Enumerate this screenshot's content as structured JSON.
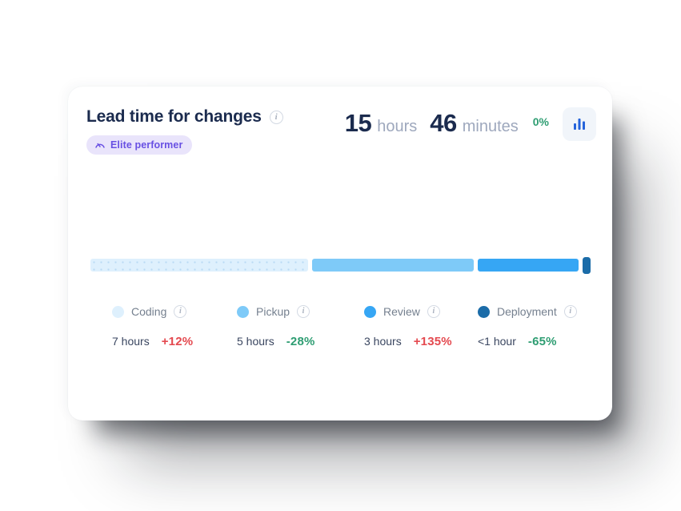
{
  "card": {
    "title": "Lead time for changes",
    "badge_label": "Elite performer",
    "summary": {
      "hours_value": "15",
      "hours_unit": "hours",
      "minutes_value": "46",
      "minutes_unit": "minutes",
      "change": "0%"
    }
  },
  "chart_data": {
    "type": "bar",
    "variant": "horizontal-stacked-single-row",
    "title": "Lead time for changes",
    "total_label": "15 hours 46 minutes",
    "total_change_pct": 0,
    "legend_position": "bottom",
    "segments": [
      {
        "name": "Coding",
        "duration_label": "7 hours",
        "hours": 7,
        "change_label": "+12%",
        "change_pct": 12,
        "color": "#DEF0FD",
        "width_pct": 43.5
      },
      {
        "name": "Pickup",
        "duration_label": "5 hours",
        "hours": 5,
        "change_label": "-28%",
        "change_pct": -28,
        "color": "#7ECAF8",
        "width_pct": 32.3
      },
      {
        "name": "Review",
        "duration_label": "3 hours",
        "hours": 3,
        "change_label": "+135%",
        "change_pct": 135,
        "color": "#36A6F4",
        "width_pct": 20.2
      },
      {
        "name": "Deployment",
        "duration_label": "<1 hour",
        "hours": 0.77,
        "change_label": "-65%",
        "change_pct": -65,
        "color": "#1B6CA8",
        "width_pct": 1.6
      }
    ],
    "colors": {
      "increase": "#E4494F",
      "decrease": "#2E9D72",
      "accent": "#2563DB",
      "badge": "#6850E3"
    }
  }
}
